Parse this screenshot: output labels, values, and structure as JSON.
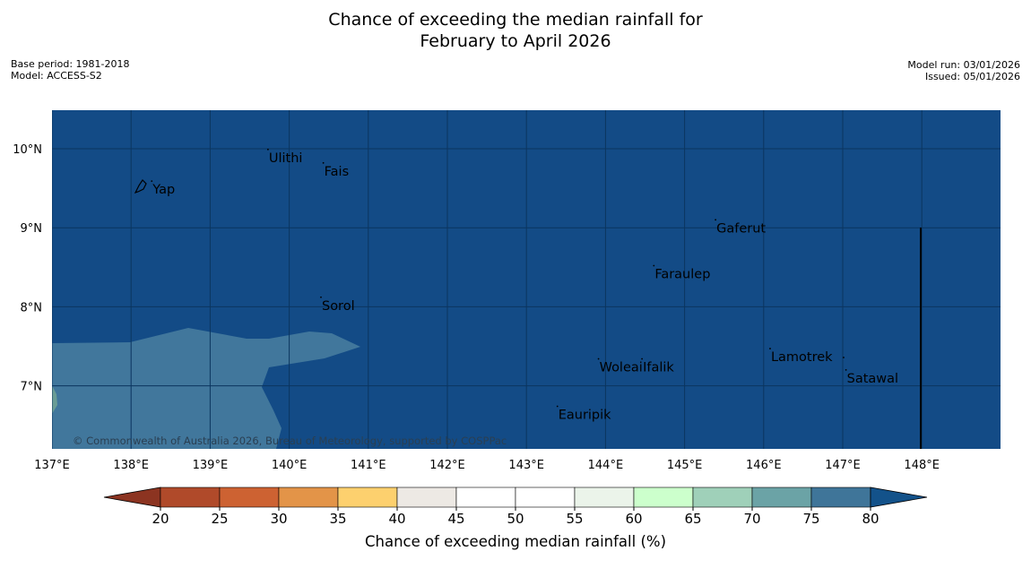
{
  "title": {
    "line1": "Chance of exceeding the median rainfall for",
    "line2": "February to April 2026"
  },
  "meta_left": {
    "base_period": "Base period: 1981-2018",
    "model": "Model: ACCESS-S2"
  },
  "meta_right": {
    "model_run": "Model run: 03/01/2026",
    "issued": "Issued: 05/01/2026"
  },
  "map": {
    "lon_range": [
      137,
      149
    ],
    "lat_range": [
      6.2,
      10.5
    ],
    "background_color": "#134b86",
    "secondary_region_color": "#41779c",
    "x_ticks": [
      "137°E",
      "138°E",
      "139°E",
      "140°E",
      "141°E",
      "142°E",
      "143°E",
      "144°E",
      "145°E",
      "146°E",
      "147°E",
      "148°E"
    ],
    "y_ticks": [
      "10°N",
      "9°N",
      "8°N",
      "7°N"
    ],
    "places": [
      {
        "name": "Yap",
        "lon": 138.25,
        "lat": 9.5
      },
      {
        "name": "Ulithi",
        "lon": 139.72,
        "lat": 9.9
      },
      {
        "name": "Fais",
        "lon": 140.42,
        "lat": 9.73
      },
      {
        "name": "Gaferut",
        "lon": 145.38,
        "lat": 9.01
      },
      {
        "name": "Faraulep",
        "lon": 144.6,
        "lat": 8.43
      },
      {
        "name": "Sorol",
        "lon": 140.39,
        "lat": 8.03
      },
      {
        "name": "Lamotrek",
        "lon": 146.07,
        "lat": 7.38
      },
      {
        "name": "Woleai",
        "lon": 143.9,
        "lat": 7.25
      },
      {
        "name": "Ifalik",
        "lon": 144.45,
        "lat": 7.25
      },
      {
        "name": "Satawal",
        "lon": 147.03,
        "lat": 7.11
      },
      {
        "name": "Eauripik",
        "lon": 143.38,
        "lat": 6.65
      }
    ],
    "copyright": "© Commonwealth of Australia 2026, Bureau of Meteorology, supported by COSPPac"
  },
  "colorbar": {
    "ticks": [
      "20",
      "25",
      "30",
      "35",
      "40",
      "45",
      "50",
      "55",
      "60",
      "65",
      "70",
      "75",
      "80"
    ],
    "colors": [
      "#b04a2a",
      "#cd6232",
      "#e39448",
      "#fdd06e",
      "#ede9e4",
      "#ffffff",
      "#ffffff",
      "#ebf4ea",
      "#ccffcc",
      "#9fd0b9",
      "#6ba3a6",
      "#3f7599"
    ],
    "under_color": "#8c3421",
    "over_color": "#13528a",
    "label": "Chance of exceeding median rainfall (%)"
  }
}
